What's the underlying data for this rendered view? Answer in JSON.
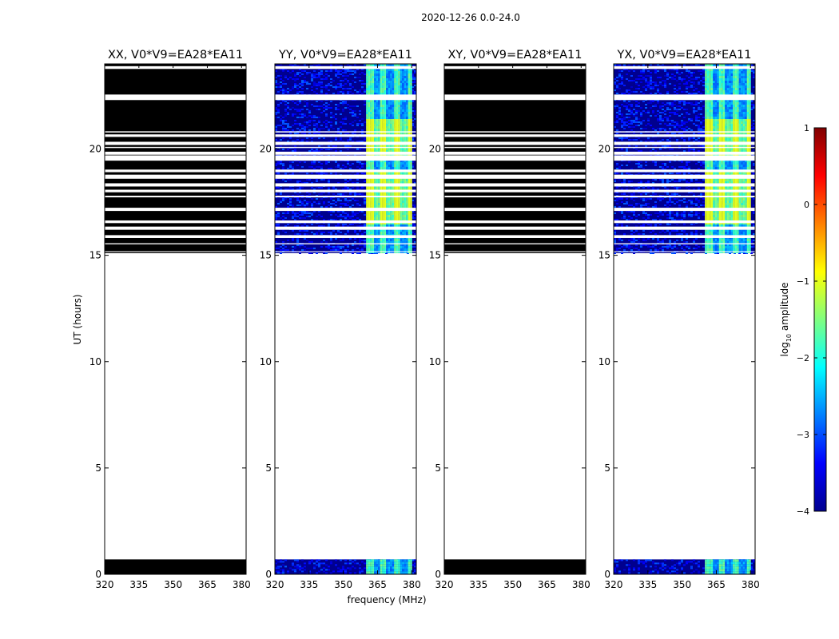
{
  "chart_data": {
    "type": "heatmap",
    "suptitle": "2020-12-26 0.0-24.0",
    "xlabel": "frequency (MHz)",
    "ylabel": "UT (hours)",
    "xlim": [
      320,
      382
    ],
    "ylim": [
      0,
      24
    ],
    "xticks": [
      320,
      335,
      350,
      365,
      380
    ],
    "xtick_labels": [
      "320",
      "335",
      "350",
      "365",
      "380"
    ],
    "yticks": [
      0,
      5,
      10,
      15,
      20
    ],
    "ytick_labels": [
      "0",
      "5",
      "10",
      "15",
      "20"
    ],
    "data_coverage_hours": [
      [
        0.0,
        0.7
      ],
      [
        15.1,
        24.0
      ]
    ],
    "rfi_band_mhz": [
      360,
      380
    ],
    "panels": [
      {
        "title": "XX, V0*V9=EA28*EA11",
        "polarization": "XX",
        "appearance": "masked-black"
      },
      {
        "title": "YY, V0*V9=EA28*EA11",
        "polarization": "YY",
        "appearance": "spectrum"
      },
      {
        "title": "XY, V0*V9=EA28*EA11",
        "polarization": "XY",
        "appearance": "masked-black"
      },
      {
        "title": "YX, V0*V9=EA28*EA11",
        "polarization": "YX",
        "appearance": "spectrum"
      }
    ],
    "colorbar": {
      "label_main": "log",
      "label_sub": "10",
      "label_rest": " amplitude",
      "range": [
        -4,
        1
      ],
      "ticks": [
        1,
        0,
        -1,
        -2,
        -3,
        -4
      ],
      "tick_labels": [
        "1",
        "0",
        "−1",
        "−2",
        "−3",
        "−4"
      ],
      "colormap": "jet"
    }
  },
  "colors": {
    "masked": "#000000",
    "background": "#00008f",
    "gap": "#ffffff",
    "axes": "#000000"
  }
}
